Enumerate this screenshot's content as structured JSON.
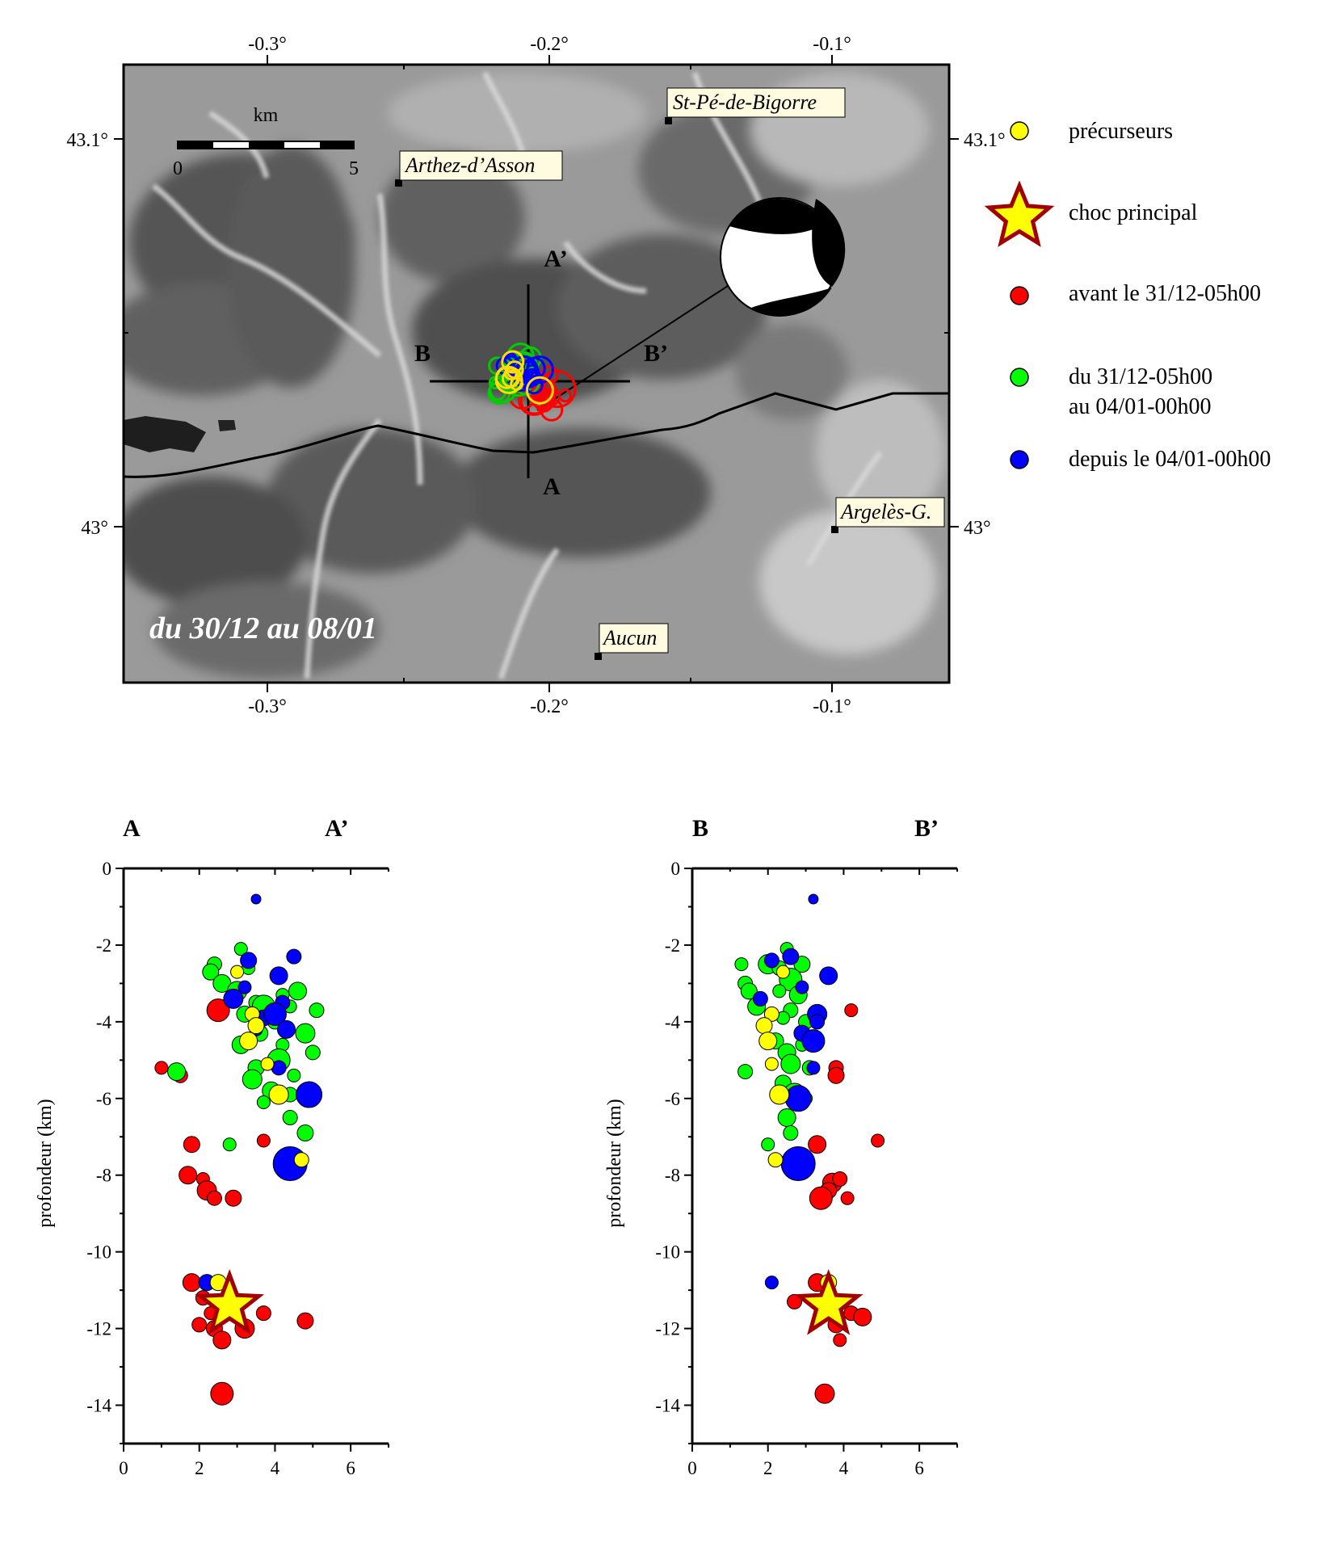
{
  "map": {
    "lon_ticks": [
      "-0.3°",
      "-0.2°",
      "-0.1°"
    ],
    "lat_ticks": [
      "43.1°",
      "43°"
    ],
    "extent": {
      "lon": [
        -0.35,
        -0.06
      ],
      "lat": [
        42.96,
        43.12
      ]
    },
    "scale_bar": {
      "unit": "km",
      "start": "0",
      "end": "5"
    },
    "towns": [
      {
        "name": "St-Pé-de-Bigorre",
        "lon": -0.159,
        "lat": 43.105
      },
      {
        "name": "Arthez-d’Asson",
        "lon": -0.253,
        "lat": 43.088
      },
      {
        "name": "Argelès-G.",
        "lon": -0.1,
        "lat": 43.0
      },
      {
        "name": "Aucun",
        "lon": -0.183,
        "lat": 42.967
      }
    ],
    "profile_labels": {
      "a": "A",
      "a_prime": "A’",
      "b": "B",
      "b_prime": "B’"
    },
    "period_label": "du 30/12 au 08/01",
    "colors": {
      "background_relief": "#8c8c8c",
      "lineament": "#000000"
    }
  },
  "legend": {
    "items": [
      {
        "label": "précurseurs",
        "color": "#ffff00",
        "symbol": "circle"
      },
      {
        "label": "choc principal",
        "color": "#ffff00",
        "edge": "#a00000",
        "symbol": "star"
      },
      {
        "label": "avant le 31/12-05h00",
        "color": "#ff0000",
        "symbol": "circle"
      },
      {
        "label": "du 31/12-05h00",
        "label2": "au 04/01-00h00",
        "color": "#00ff00",
        "symbol": "circle"
      },
      {
        "label": "depuis le 04/01-00h00",
        "color": "#0000ff",
        "symbol": "circle"
      }
    ]
  },
  "sections": {
    "ylabel": "profondeur (km)",
    "x_ticks": [
      "0",
      "2",
      "4",
      "6"
    ],
    "y_ticks": [
      "0",
      "-2",
      "-4",
      "-6",
      "-8",
      "-10",
      "-12",
      "-14"
    ],
    "left": {
      "start": "A",
      "end": "A’"
    },
    "right": {
      "start": "B",
      "end": "B’"
    }
  },
  "chart_data": [
    {
      "type": "scatter",
      "title": "A – A’",
      "ylabel": "profondeur (km)",
      "xlim": [
        0,
        7
      ],
      "ylim": [
        -15,
        0
      ],
      "series": [
        {
          "name": "avant le 31/12-05h00",
          "color": "#ff0000",
          "points": [
            [
              1.0,
              -5.2
            ],
            [
              1.5,
              -5.4
            ],
            [
              1.8,
              -7.2
            ],
            [
              1.7,
              -8.0
            ],
            [
              2.1,
              -8.1
            ],
            [
              2.2,
              -8.4
            ],
            [
              2.4,
              -8.6
            ],
            [
              2.9,
              -8.6
            ],
            [
              2.5,
              -3.7
            ],
            [
              3.7,
              -7.1
            ],
            [
              1.8,
              -10.8
            ],
            [
              2.1,
              -11.2
            ],
            [
              2.3,
              -11.6
            ],
            [
              2.0,
              -11.9
            ],
            [
              2.4,
              -12.0
            ],
            [
              2.6,
              -12.3
            ],
            [
              3.0,
              -11.5
            ],
            [
              3.2,
              -12.0
            ],
            [
              3.7,
              -11.6
            ],
            [
              4.8,
              -11.8
            ],
            [
              2.6,
              -13.7
            ]
          ]
        },
        {
          "name": "du 31/12-05h00 au 04/01-00h00",
          "color": "#00ff00",
          "points": [
            [
              3.1,
              -2.1
            ],
            [
              2.4,
              -2.5
            ],
            [
              2.3,
              -2.7
            ],
            [
              2.6,
              -3.0
            ],
            [
              3.3,
              -2.6
            ],
            [
              3.0,
              -3.2
            ],
            [
              3.5,
              -3.5
            ],
            [
              3.2,
              -3.8
            ],
            [
              3.7,
              -3.6
            ],
            [
              4.2,
              -3.3
            ],
            [
              4.6,
              -3.2
            ],
            [
              5.1,
              -3.7
            ],
            [
              4.4,
              -3.6
            ],
            [
              4.0,
              -4.0
            ],
            [
              3.6,
              -4.3
            ],
            [
              3.1,
              -4.6
            ],
            [
              4.2,
              -4.6
            ],
            [
              4.8,
              -4.3
            ],
            [
              5.0,
              -4.8
            ],
            [
              3.5,
              -5.2
            ],
            [
              4.1,
              -5.0
            ],
            [
              4.5,
              -5.4
            ],
            [
              3.9,
              -5.8
            ],
            [
              4.4,
              -5.9
            ],
            [
              3.7,
              -6.1
            ],
            [
              4.4,
              -6.5
            ],
            [
              4.8,
              -6.9
            ],
            [
              1.4,
              -5.3
            ],
            [
              2.8,
              -7.2
            ],
            [
              3.4,
              -5.5
            ]
          ]
        },
        {
          "name": "depuis le 04/01-00h00",
          "color": "#0000ff",
          "points": [
            [
              3.5,
              -0.8
            ],
            [
              4.5,
              -2.3
            ],
            [
              3.3,
              -2.4
            ],
            [
              4.1,
              -2.8
            ],
            [
              3.2,
              -3.1
            ],
            [
              2.9,
              -3.4
            ],
            [
              4.2,
              -3.5
            ],
            [
              3.7,
              -3.9
            ],
            [
              4.0,
              -3.8
            ],
            [
              3.5,
              -4.2
            ],
            [
              4.3,
              -4.2
            ],
            [
              4.1,
              -5.2
            ],
            [
              4.9,
              -5.9
            ],
            [
              4.4,
              -7.7
            ],
            [
              2.2,
              -10.8
            ]
          ]
        },
        {
          "name": "précurseurs",
          "color": "#ffff00",
          "points": [
            [
              3.0,
              -2.7
            ],
            [
              3.4,
              -3.8
            ],
            [
              3.5,
              -4.1
            ],
            [
              3.3,
              -4.5
            ],
            [
              3.8,
              -5.1
            ],
            [
              4.1,
              -5.9
            ],
            [
              4.7,
              -7.6
            ],
            [
              2.5,
              -10.8
            ]
          ]
        },
        {
          "name": "choc principal",
          "color": "#ffff00",
          "points": [
            [
              2.8,
              -11.4
            ]
          ]
        }
      ]
    },
    {
      "type": "scatter",
      "title": "B – B’",
      "ylabel": "profondeur (km)",
      "xlim": [
        0,
        7
      ],
      "ylim": [
        -15,
        0
      ],
      "series": [
        {
          "name": "avant le 31/12-05h00",
          "color": "#ff0000",
          "points": [
            [
              4.2,
              -3.7
            ],
            [
              3.8,
              -5.2
            ],
            [
              3.8,
              -5.4
            ],
            [
              3.3,
              -7.2
            ],
            [
              4.9,
              -7.1
            ],
            [
              3.7,
              -8.2
            ],
            [
              3.9,
              -8.1
            ],
            [
              3.6,
              -8.4
            ],
            [
              3.4,
              -8.6
            ],
            [
              4.1,
              -8.6
            ],
            [
              3.3,
              -10.8
            ],
            [
              2.7,
              -11.3
            ],
            [
              3.4,
              -11.5
            ],
            [
              4.2,
              -11.6
            ],
            [
              3.8,
              -11.9
            ],
            [
              4.5,
              -11.7
            ],
            [
              3.9,
              -12.3
            ],
            [
              3.5,
              -13.7
            ]
          ]
        },
        {
          "name": "du 31/12-05h00 au 04/01-00h00",
          "color": "#00ff00",
          "points": [
            [
              1.3,
              -2.5
            ],
            [
              1.4,
              -3.0
            ],
            [
              1.5,
              -3.2
            ],
            [
              1.7,
              -3.6
            ],
            [
              2.5,
              -2.1
            ],
            [
              2.0,
              -2.5
            ],
            [
              2.3,
              -2.6
            ],
            [
              2.9,
              -2.5
            ],
            [
              2.6,
              -2.9
            ],
            [
              2.3,
              -3.2
            ],
            [
              2.8,
              -3.3
            ],
            [
              2.6,
              -3.7
            ],
            [
              2.4,
              -3.9
            ],
            [
              3.0,
              -4.0
            ],
            [
              2.2,
              -4.5
            ],
            [
              2.5,
              -4.8
            ],
            [
              2.9,
              -4.6
            ],
            [
              2.6,
              -5.1
            ],
            [
              3.1,
              -5.2
            ],
            [
              2.4,
              -5.6
            ],
            [
              2.7,
              -5.9
            ],
            [
              3.0,
              -6.0
            ],
            [
              2.5,
              -6.5
            ],
            [
              2.6,
              -6.9
            ],
            [
              2.0,
              -7.2
            ],
            [
              1.4,
              -5.3
            ]
          ]
        },
        {
          "name": "depuis le 04/01-00h00",
          "color": "#0000ff",
          "points": [
            [
              3.2,
              -0.8
            ],
            [
              2.1,
              -2.4
            ],
            [
              2.6,
              -2.3
            ],
            [
              3.6,
              -2.8
            ],
            [
              2.9,
              -3.1
            ],
            [
              3.3,
              -3.8
            ],
            [
              3.3,
              -4.0
            ],
            [
              2.9,
              -4.3
            ],
            [
              3.2,
              -4.5
            ],
            [
              3.2,
              -5.2
            ],
            [
              2.8,
              -6.0
            ],
            [
              2.8,
              -7.7
            ],
            [
              2.1,
              -10.8
            ],
            [
              1.8,
              -3.4
            ]
          ]
        },
        {
          "name": "précurseurs",
          "color": "#ffff00",
          "points": [
            [
              2.4,
              -2.7
            ],
            [
              2.1,
              -3.8
            ],
            [
              1.9,
              -4.1
            ],
            [
              2.0,
              -4.5
            ],
            [
              2.1,
              -5.1
            ],
            [
              2.3,
              -5.9
            ],
            [
              2.2,
              -7.6
            ],
            [
              3.6,
              -10.8
            ]
          ]
        },
        {
          "name": "choc principal",
          "color": "#ffff00",
          "points": [
            [
              3.6,
              -11.4
            ]
          ]
        }
      ]
    }
  ]
}
